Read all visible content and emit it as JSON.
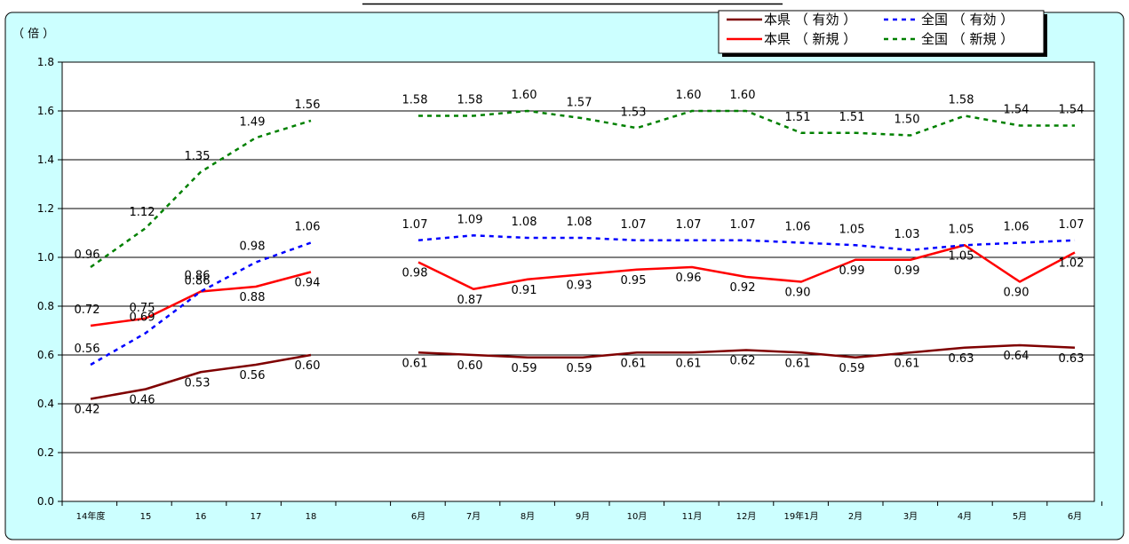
{
  "chart_data": {
    "type": "line",
    "title": "",
    "ylabel": "（ 倍 ）",
    "xlabel": "",
    "ylim": [
      0.0,
      1.8
    ],
    "y_ticks": [
      "0.0",
      "0.2",
      "0.4",
      "0.6",
      "0.8",
      "1.0",
      "1.2",
      "1.4",
      "1.6",
      "1.8"
    ],
    "grid": true,
    "legend_position": "top-right",
    "categories": [
      "14年度",
      "15",
      "16",
      "17",
      "18",
      "6月",
      "7月",
      "8月",
      "9月",
      "10月",
      "11月",
      "12月",
      "19年1月",
      "2月",
      "3月",
      "4月",
      "5月",
      "6月"
    ],
    "series": [
      {
        "name": "本県 （ 有効 ）",
        "color": "#7f0000",
        "style": "solid",
        "values": [
          0.42,
          0.46,
          0.53,
          0.56,
          0.6,
          0.61,
          0.6,
          0.59,
          0.59,
          0.61,
          0.61,
          0.62,
          0.61,
          0.59,
          0.61,
          0.63,
          0.64,
          0.63
        ],
        "labels": [
          "0.42",
          "0.46",
          "0.53",
          "0.56",
          "0.60",
          "0.61",
          "0.60",
          "0.59",
          "0.59",
          "0.61",
          "0.61",
          "0.62",
          "0.61",
          "0.59",
          "0.61",
          "0.63",
          "0.64",
          "0.63"
        ]
      },
      {
        "name": "本県 （ 新規 ）",
        "color": "#ff0000",
        "style": "solid",
        "values": [
          0.72,
          0.75,
          0.86,
          0.88,
          0.94,
          0.98,
          0.87,
          0.91,
          0.93,
          0.95,
          0.96,
          0.92,
          0.9,
          0.99,
          0.99,
          1.05,
          0.9,
          1.02
        ],
        "labels": [
          "0.72",
          "0.75",
          "0.86",
          "0.88",
          "0.94",
          "0.98",
          "0.87",
          "0.91",
          "0.93",
          "0.95",
          "0.96",
          "0.92",
          "0.90",
          "0.99",
          "0.99",
          "1.05",
          "0.90",
          "1.02"
        ]
      },
      {
        "name": "全国 （ 有効 ）",
        "color": "#0000ff",
        "style": "dashed",
        "values": [
          0.56,
          0.69,
          0.86,
          0.98,
          1.06,
          1.07,
          1.09,
          1.08,
          1.08,
          1.07,
          1.07,
          1.07,
          1.06,
          1.05,
          1.03,
          1.05,
          1.06,
          1.07
        ],
        "labels": [
          "0.56",
          "0.69",
          "0.86",
          "0.98",
          "1.06",
          "1.07",
          "1.09",
          "1.08",
          "1.08",
          "1.07",
          "1.07",
          "1.07",
          "1.06",
          "1.05",
          "1.03",
          "1.05",
          "1.06",
          "1.07"
        ]
      },
      {
        "name": "全国 （ 新規 ）",
        "color": "#008000",
        "style": "dashed",
        "values": [
          0.96,
          1.12,
          1.35,
          1.49,
          1.56,
          1.58,
          1.58,
          1.6,
          1.57,
          1.53,
          1.6,
          1.6,
          1.51,
          1.51,
          1.5,
          1.58,
          1.54,
          1.54
        ],
        "labels": [
          "0.96",
          "1.12",
          "1.35",
          "1.49",
          "1.56",
          "1.58",
          "1.58",
          "1.60",
          "1.57",
          "1.53",
          "1.60",
          "1.60",
          "1.51",
          "1.51",
          "1.50",
          "1.58",
          "1.54",
          "1.54"
        ]
      }
    ]
  }
}
